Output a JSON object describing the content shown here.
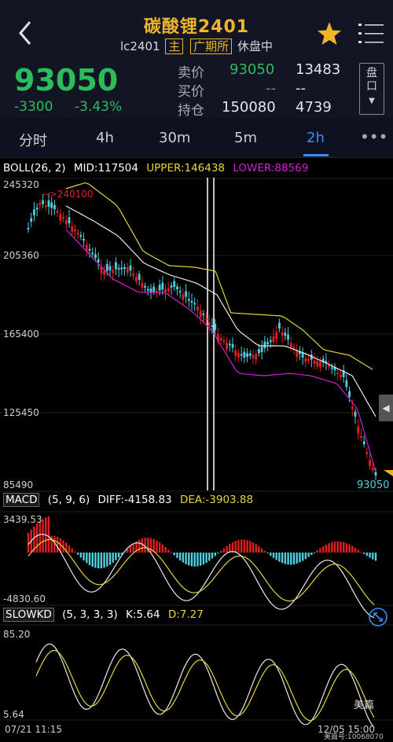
{
  "header": {
    "title": "碳酸锂2401",
    "code": "lc2401",
    "tag_main": "主",
    "tag_exchange": "广期所",
    "status": "休盘中"
  },
  "quote": {
    "last": "93050",
    "change": "-3300",
    "change_pct": "-3.43%",
    "sell_label": "卖价",
    "sell_price": "93050",
    "sell_vol": "13483",
    "buy_label": "买价",
    "buy_price": "--",
    "buy_vol": "--",
    "oi_label": "持仓",
    "oi": "150080",
    "oi_change": "4739",
    "side_button": "盘\n口",
    "color_down": "#2bbd5b",
    "color_up": "#e02020"
  },
  "tabs": [
    {
      "label": "分时"
    },
    {
      "label": "4h"
    },
    {
      "label": "30m"
    },
    {
      "label": "5m"
    },
    {
      "label": "2h",
      "active": true
    }
  ],
  "indicators": {
    "boll": {
      "name": "BOLL(26, 2)",
      "mid": "MID:117504",
      "upper": "UPPER:146438",
      "lower": "LOWER:88569"
    },
    "macd": {
      "name": "MACD",
      "params": "(5, 9, 6)",
      "diff": "DIFF:-4158.83",
      "dea": "DEA:-3903.88"
    },
    "slowkd": {
      "name": "SLOWKD",
      "params": "(5, 3, 3, 3)",
      "k": "K:5.64",
      "d": "D:7.27"
    }
  },
  "price_axis": {
    "labels": [
      "245320",
      "205360",
      "165400",
      "125450",
      "85490"
    ],
    "last_label": "93050",
    "marker": "-->240100"
  },
  "macd_axis": {
    "top": "3439.53",
    "bottom": "-4830.60"
  },
  "kd_axis": {
    "top": "85.20",
    "bottom": "5.64"
  },
  "time_axis": {
    "start": "07/21 11:15",
    "end": "12/05 15:00"
  },
  "watermark": {
    "brand": "美篇",
    "sub": "美篇号:10068070"
  },
  "icons": [
    "back-icon",
    "star-icon",
    "menu-icon",
    "more-icon",
    "expand-icon",
    "collapse-arrow-icon"
  ]
}
